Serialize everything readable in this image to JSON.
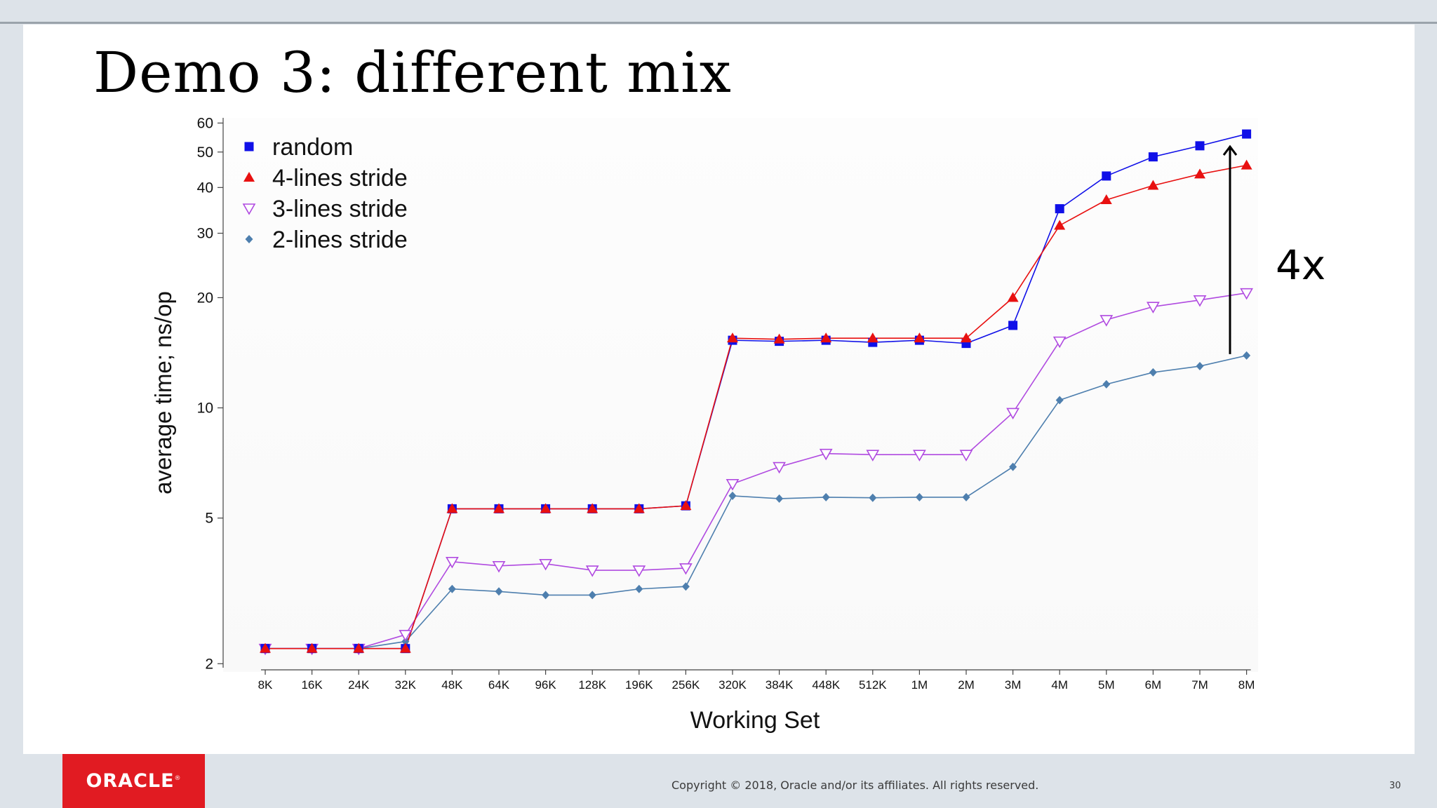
{
  "slide": {
    "title": "Demo 3: different mix",
    "annotation": "4x",
    "copyright": "Copyright © 2018, Oracle and/or its affiliates. All rights reserved.",
    "page_number": "30",
    "logo_text": "ORACLE"
  },
  "colors": {
    "random": "#1010e8",
    "stride4": "#e81010",
    "stride3": "#b04ae0",
    "stride2": "#4e7fae",
    "logo_bg": "#e11b22"
  },
  "chart_data": {
    "type": "line",
    "title": "",
    "xlabel": "Working Set",
    "ylabel": "average time; ns/op",
    "y_scale": "log",
    "ylim": [
      1.95,
      62
    ],
    "y_ticks": [
      2,
      5,
      10,
      20,
      30,
      40,
      50,
      60
    ],
    "grid": false,
    "legend_position": "top-left",
    "categories": [
      "8K",
      "16K",
      "24K",
      "32K",
      "48K",
      "64K",
      "96K",
      "128K",
      "196K",
      "256K",
      "320K",
      "384K",
      "448K",
      "512K",
      "1M",
      "2M",
      "3M",
      "4M",
      "5M",
      "6M",
      "7M",
      "8M"
    ],
    "series": [
      {
        "name": "random",
        "marker": "square",
        "color": "#1010e8",
        "values": [
          2.2,
          2.2,
          2.2,
          2.2,
          5.3,
          5.3,
          5.3,
          5.3,
          5.3,
          5.4,
          15.3,
          15.2,
          15.3,
          15.1,
          15.3,
          15.0,
          16.8,
          35.0,
          43.0,
          48.5,
          52.0,
          56.0
        ]
      },
      {
        "name": "4-lines stride",
        "marker": "triangle-up",
        "color": "#e81010",
        "values": [
          2.2,
          2.2,
          2.2,
          2.2,
          5.3,
          5.3,
          5.3,
          5.3,
          5.3,
          5.4,
          15.5,
          15.4,
          15.5,
          15.5,
          15.5,
          15.5,
          20.0,
          31.5,
          37.0,
          40.5,
          43.5,
          46.0
        ]
      },
      {
        "name": "3-lines stride",
        "marker": "triangle-down",
        "color": "#b04ae0",
        "values": [
          2.2,
          2.2,
          2.2,
          2.4,
          3.8,
          3.7,
          3.75,
          3.6,
          3.6,
          3.65,
          6.2,
          6.9,
          7.5,
          7.45,
          7.45,
          7.45,
          9.7,
          15.2,
          17.4,
          18.9,
          19.7,
          20.6
        ]
      },
      {
        "name": "2-lines stride",
        "marker": "diamond",
        "color": "#4e7fae",
        "values": [
          2.2,
          2.2,
          2.2,
          2.3,
          3.2,
          3.15,
          3.08,
          3.08,
          3.2,
          3.25,
          5.75,
          5.65,
          5.7,
          5.68,
          5.7,
          5.7,
          6.9,
          10.5,
          11.6,
          12.5,
          13.0,
          13.9
        ]
      }
    ]
  }
}
